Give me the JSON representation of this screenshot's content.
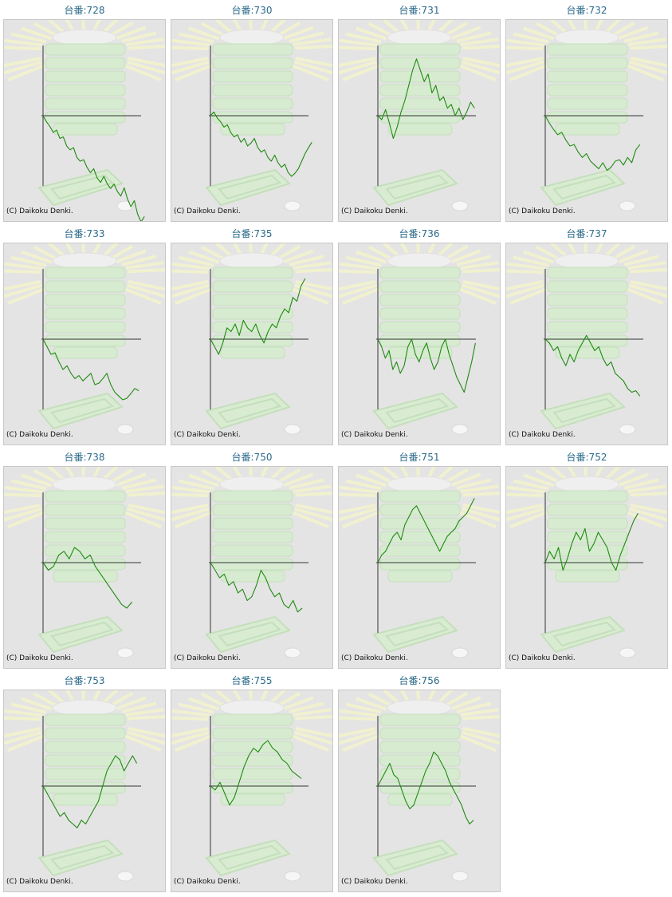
{
  "title_prefix": "台番:",
  "copyright": "(C) Daikoku Denki.",
  "colors": {
    "line": "#1f8a10",
    "axis": "#333333",
    "background": "#e4e4e4",
    "title": "#2a6a8a"
  },
  "chart_data": [
    {
      "type": "line",
      "title": "台番:728",
      "y": [
        0,
        -8,
        -14,
        -22,
        -19,
        -30,
        -28,
        -40,
        -45,
        -42,
        -55,
        -60,
        -58,
        -68,
        -75,
        -70,
        -82,
        -88,
        -80,
        -90,
        -96,
        -90,
        -100,
        -106,
        -95,
        -110,
        -120,
        -112,
        -130,
        -140,
        -133
      ]
    },
    {
      "type": "line",
      "title": "台番:730",
      "y": [
        0,
        5,
        -3,
        -8,
        -15,
        -12,
        -22,
        -28,
        -25,
        -35,
        -30,
        -40,
        -36,
        -30,
        -42,
        -48,
        -45,
        -55,
        -60,
        -52,
        -62,
        -68,
        -64,
        -75,
        -80,
        -76,
        -70,
        -60,
        -50,
        -42,
        -35
      ]
    },
    {
      "type": "line",
      "title": "台番:731",
      "y": [
        0,
        -5,
        8,
        -10,
        -30,
        -15,
        5,
        20,
        40,
        60,
        75,
        60,
        45,
        55,
        30,
        40,
        20,
        25,
        10,
        15,
        0,
        10,
        -5,
        5,
        18,
        10
      ]
    },
    {
      "type": "line",
      "title": "台番:732",
      "y": [
        0,
        -10,
        -18,
        -25,
        -22,
        -32,
        -40,
        -38,
        -48,
        -55,
        -50,
        -60,
        -65,
        -70,
        -62,
        -72,
        -68,
        -60,
        -58,
        -65,
        -55,
        -62,
        -45,
        -38
      ]
    },
    {
      "type": "line",
      "title": "台番:733",
      "y": [
        0,
        -10,
        -20,
        -18,
        -30,
        -40,
        -35,
        -45,
        -52,
        -48,
        -55,
        -50,
        -45,
        -60,
        -58,
        -52,
        -45,
        -60,
        -70,
        -75,
        -80,
        -78,
        -72,
        -65,
        -68
      ]
    },
    {
      "type": "line",
      "title": "台番:735",
      "y": [
        0,
        -10,
        -20,
        -5,
        15,
        10,
        20,
        5,
        25,
        15,
        10,
        20,
        5,
        -5,
        10,
        20,
        15,
        30,
        40,
        35,
        55,
        50,
        70,
        80
      ]
    },
    {
      "type": "line",
      "title": "台番:736",
      "y": [
        0,
        -10,
        -25,
        -15,
        -40,
        -30,
        -45,
        -35,
        -10,
        0,
        -20,
        -30,
        -15,
        -5,
        -25,
        -40,
        -30,
        -10,
        0,
        -20,
        -35,
        -50,
        -60,
        -70,
        -50,
        -30,
        -5
      ]
    },
    {
      "type": "line",
      "title": "台番:737",
      "y": [
        0,
        -5,
        -15,
        -10,
        -25,
        -35,
        -20,
        -30,
        -15,
        -5,
        5,
        -5,
        -15,
        -10,
        -25,
        -35,
        -30,
        -45,
        -50,
        -55,
        -65,
        -70,
        -68,
        -75
      ]
    },
    {
      "type": "line",
      "title": "台番:738",
      "y": [
        0,
        -10,
        -5,
        10,
        15,
        5,
        20,
        15,
        5,
        10,
        -5,
        -15,
        -25,
        -35,
        -45,
        -55,
        -60,
        -52
      ]
    },
    {
      "type": "line",
      "title": "台番:750",
      "y": [
        0,
        -10,
        -20,
        -15,
        -30,
        -25,
        -40,
        -35,
        -50,
        -45,
        -30,
        -10,
        -20,
        -35,
        -45,
        -40,
        -55,
        -60,
        -50,
        -65,
        -60
      ]
    },
    {
      "type": "line",
      "title": "台番:751",
      "y": [
        0,
        10,
        15,
        25,
        35,
        40,
        30,
        50,
        60,
        70,
        75,
        65,
        55,
        45,
        35,
        25,
        15,
        25,
        35,
        40,
        45,
        55,
        60,
        65,
        75,
        85
      ]
    },
    {
      "type": "line",
      "title": "台番:752",
      "y": [
        0,
        15,
        5,
        20,
        -10,
        5,
        25,
        40,
        30,
        45,
        15,
        25,
        40,
        30,
        20,
        0,
        -10,
        10,
        25,
        40,
        55,
        65
      ]
    },
    {
      "type": "line",
      "title": "台番:753",
      "y": [
        0,
        -10,
        -20,
        -30,
        -40,
        -35,
        -45,
        -50,
        -55,
        -45,
        -50,
        -40,
        -30,
        -20,
        0,
        20,
        30,
        40,
        35,
        20,
        30,
        40,
        30
      ]
    },
    {
      "type": "line",
      "title": "台番:755",
      "y": [
        0,
        -5,
        5,
        -10,
        -25,
        -15,
        5,
        25,
        40,
        50,
        45,
        55,
        60,
        50,
        45,
        35,
        30,
        20,
        15,
        10
      ]
    },
    {
      "type": "line",
      "title": "台番:756",
      "y": [
        0,
        10,
        20,
        30,
        15,
        10,
        -5,
        -20,
        -30,
        -25,
        -10,
        5,
        20,
        30,
        45,
        40,
        30,
        20,
        5,
        -5,
        -15,
        -25,
        -40,
        -50,
        -45
      ]
    }
  ]
}
